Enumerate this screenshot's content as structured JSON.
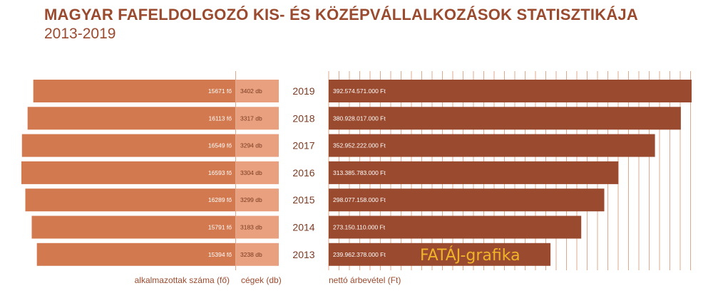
{
  "header": {
    "title": "MAGYAR FAFELDOLGOZÓ KIS- ÉS KÖZÉPVÁLLALKOZÁSOK STATISZTIKÁJA",
    "subtitle": "2013-2019"
  },
  "chart_data": {
    "type": "bar",
    "categories": [
      "2019",
      "2018",
      "2017",
      "2016",
      "2015",
      "2014",
      "2013"
    ],
    "series": [
      {
        "name": "alkalmazottak száma (fő)",
        "values": [
          15671,
          16113,
          16549,
          16593,
          16289,
          15791,
          15394
        ],
        "labels": [
          "15671 fő",
          "16113 fő",
          "16549 fő",
          "16593 fő",
          "16289 fő",
          "15791 fő",
          "15394 fő"
        ],
        "color": "#d2794f"
      },
      {
        "name": "cégek (db)",
        "values": [
          3402,
          3317,
          3294,
          3304,
          3299,
          3183,
          3238
        ],
        "labels": [
          "3402 db",
          "3317 db",
          "3294 db",
          "3304 db",
          "3299 db",
          "3183 db",
          "3238 db"
        ],
        "color": "#e8a07e"
      },
      {
        "name": "nettó árbevétel (Ft)",
        "values": [
          392574571000,
          380928017000,
          352952222000,
          313385783000,
          298077158000,
          273150110000,
          239962378000
        ],
        "labels": [
          "392.574.571.000 Ft",
          "380.928.017.000 Ft",
          "352.952.222.000 Ft",
          "313.385.783.000 Ft",
          "298.077.158.000 Ft",
          "273.150.110.000 Ft",
          "239.962.378.000 Ft"
        ],
        "color": "#9a4a2e"
      }
    ],
    "grid": true,
    "watermark": "FATÁJ-grafika"
  }
}
